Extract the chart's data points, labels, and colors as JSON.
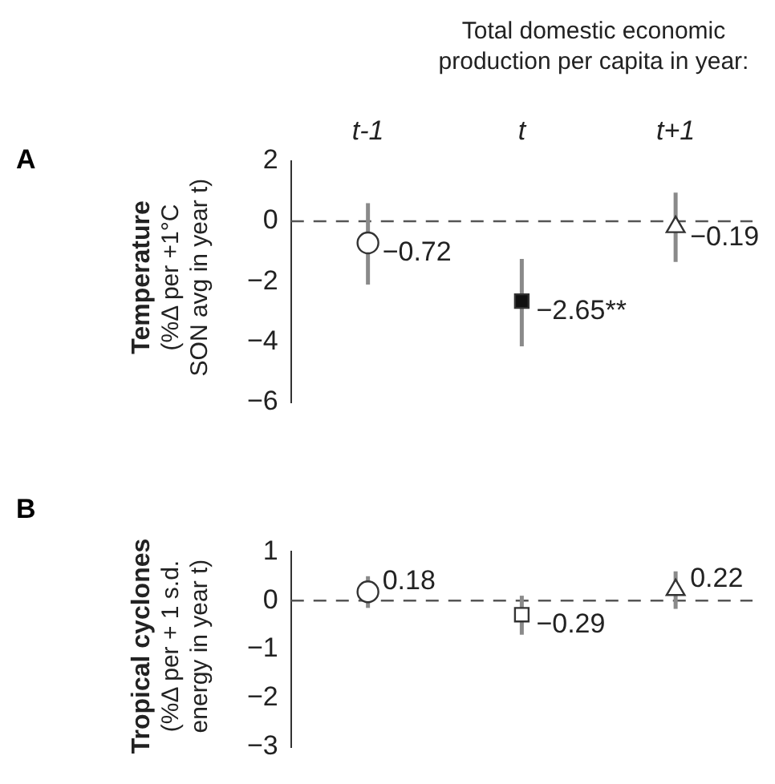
{
  "chart_data": [
    {
      "type": "scatter",
      "title": "Total domestic economic production per capita in year:",
      "annotations": [
        "A"
      ],
      "ylabel": "Temperature\n(%Δ  per +1°C\nSON avg in year t)",
      "categories": [
        "t-1",
        "t",
        "t+1"
      ],
      "ylim": [
        -6,
        2
      ],
      "yticks": [
        {
          "value": -6,
          "label": "−6"
        },
        {
          "value": -4,
          "label": "−4"
        },
        {
          "value": -2,
          "label": "−2"
        },
        0,
        2
      ],
      "grid": false,
      "ref_lines": [
        {
          "axis": "y",
          "value": 0,
          "line_style": "dashed",
          "color": "#555555"
        }
      ],
      "series": [
        {
          "x": [
            "t-1"
          ],
          "values": [
            -0.72
          ],
          "errors": [
            [
              -2.1,
              0.6
            ]
          ],
          "marker": "circle",
          "color": "#ffffff",
          "value_labels": [
            "−0.72"
          ]
        },
        {
          "x": [
            "t"
          ],
          "values": [
            -2.65
          ],
          "errors": [
            [
              -4.15,
              -1.25
            ]
          ],
          "marker": "square",
          "color": "#111111",
          "value_labels": [
            "−2.65**"
          ]
        },
        {
          "x": [
            "t+1"
          ],
          "values": [
            -0.19
          ],
          "errors": [
            [
              -1.35,
              0.95
            ]
          ],
          "marker": "triangle",
          "color": "#ffffff",
          "value_labels": [
            "−0.19"
          ]
        }
      ]
    },
    {
      "type": "scatter",
      "annotations": [
        "B"
      ],
      "ylabel": "Tropical cyclones\n(%Δ per + 1 s.d.\nenergy in year t)",
      "categories": [
        "t-1",
        "t",
        "t+1"
      ],
      "tick_labels": "y",
      "ylim": [
        -3,
        1
      ],
      "yticks": [
        {
          "value": -3,
          "label": "−3"
        },
        {
          "value": -2,
          "label": "−2"
        },
        {
          "value": -1,
          "label": "−1"
        },
        0,
        1
      ],
      "grid": false,
      "ref_lines": [
        {
          "axis": "y",
          "value": 0,
          "line_style": "dashed",
          "color": "#555555"
        }
      ],
      "series": [
        {
          "x": [
            "t-1"
          ],
          "values": [
            0.18
          ],
          "errors": [
            [
              -0.15,
              0.5
            ]
          ],
          "marker": "circle",
          "color": "#ffffff",
          "value_labels": [
            "0.18"
          ]
        },
        {
          "x": [
            "t"
          ],
          "values": [
            -0.29
          ],
          "errors": [
            [
              -0.7,
              0.1
            ]
          ],
          "marker": "square",
          "color": "#ffffff",
          "value_labels": [
            "−0.29"
          ]
        },
        {
          "x": [
            "t+1"
          ],
          "values": [
            0.22
          ],
          "errors": [
            [
              -0.17,
              0.6
            ]
          ],
          "marker": "triangle",
          "color": "#ffffff",
          "value_labels": [
            "0.22"
          ]
        }
      ]
    }
  ]
}
